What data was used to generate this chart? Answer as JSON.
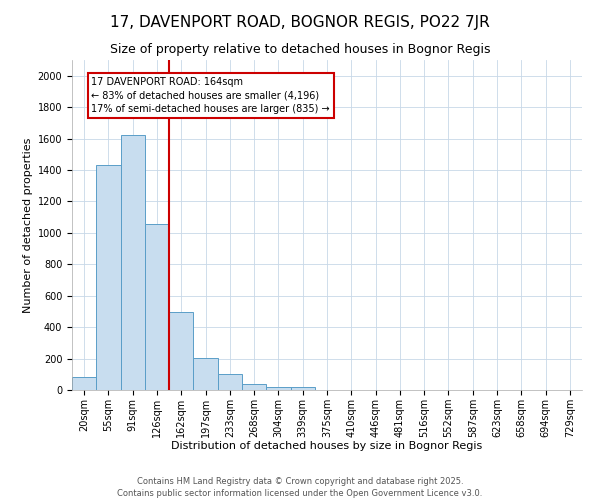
{
  "title_line1": "17, DAVENPORT ROAD, BOGNOR REGIS, PO22 7JR",
  "title_line2": "Size of property relative to detached houses in Bognor Regis",
  "xlabel": "Distribution of detached houses by size in Bognor Regis",
  "ylabel": "Number of detached properties",
  "categories": [
    "20sqm",
    "55sqm",
    "91sqm",
    "126sqm",
    "162sqm",
    "197sqm",
    "233sqm",
    "268sqm",
    "304sqm",
    "339sqm",
    "375sqm",
    "410sqm",
    "446sqm",
    "481sqm",
    "516sqm",
    "552sqm",
    "587sqm",
    "623sqm",
    "658sqm",
    "694sqm",
    "729sqm"
  ],
  "values": [
    80,
    1430,
    1620,
    1055,
    495,
    205,
    105,
    38,
    22,
    20,
    0,
    0,
    0,
    0,
    0,
    0,
    0,
    0,
    0,
    0,
    0
  ],
  "bar_color": "#c8ddef",
  "bar_edge_color": "#5a9ec8",
  "vline_index": 4,
  "vline_color": "#cc0000",
  "annotation_text": "17 DAVENPORT ROAD: 164sqm\n← 83% of detached houses are smaller (4,196)\n17% of semi-detached houses are larger (835) →",
  "annotation_box_color": "#cc0000",
  "ylim": [
    0,
    2100
  ],
  "yticks": [
    0,
    200,
    400,
    600,
    800,
    1000,
    1200,
    1400,
    1600,
    1800,
    2000
  ],
  "footer_line1": "Contains HM Land Registry data © Crown copyright and database right 2025.",
  "footer_line2": "Contains public sector information licensed under the Open Government Licence v3.0.",
  "background_color": "#ffffff",
  "grid_color": "#c8d8e8",
  "title_fontsize": 11,
  "subtitle_fontsize": 9,
  "xlabel_fontsize": 8,
  "ylabel_fontsize": 8,
  "tick_fontsize": 7,
  "footer_fontsize": 6,
  "annot_fontsize": 7
}
